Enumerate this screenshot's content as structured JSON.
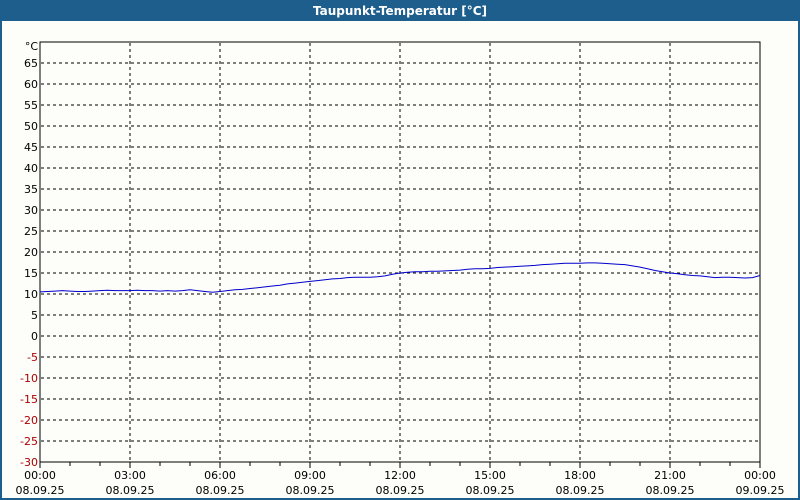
{
  "window": {
    "title": "Taupunkt-Temperatur [°C]",
    "title_bar_color": "#1d5e8c",
    "border_color": "#1d5e8c",
    "background_color": "#fdfdfa"
  },
  "chart_data": {
    "type": "line",
    "title": "Taupunkt-Temperatur [°C]",
    "grid": true,
    "grid_color": "#000000",
    "y_axis": {
      "unit_label": "°C",
      "min": -30,
      "max": 70,
      "grid_step": 5,
      "tick_values": [
        65,
        60,
        55,
        50,
        45,
        40,
        35,
        30,
        25,
        20,
        15,
        10,
        5,
        0,
        -5,
        -10,
        -15,
        -20,
        -25,
        -30
      ],
      "label_color": "#000000",
      "negative_label_color": "#aa0000"
    },
    "x_axis": {
      "min_hour": 0,
      "max_hour": 24,
      "major_step_hours": 3,
      "minor_step_hours": 1,
      "ticks": [
        {
          "time": "00:00",
          "date": "08.09.25"
        },
        {
          "time": "03:00",
          "date": "08.09.25"
        },
        {
          "time": "06:00",
          "date": "08.09.25"
        },
        {
          "time": "09:00",
          "date": "08.09.25"
        },
        {
          "time": "12:00",
          "date": "08.09.25"
        },
        {
          "time": "15:00",
          "date": "08.09.25"
        },
        {
          "time": "18:00",
          "date": "08.09.25"
        },
        {
          "time": "21:00",
          "date": "08.09.25"
        },
        {
          "time": "00:00",
          "date": "09.09.25"
        }
      ]
    },
    "series": [
      {
        "name": "Taupunkt-Temperatur",
        "color": "#0000cc",
        "points": [
          [
            0,
            10.5
          ],
          [
            0.25,
            10.6
          ],
          [
            0.5,
            10.7
          ],
          [
            0.75,
            10.8
          ],
          [
            1,
            10.7
          ],
          [
            1.25,
            10.6
          ],
          [
            1.5,
            10.6
          ],
          [
            1.75,
            10.7
          ],
          [
            2,
            10.8
          ],
          [
            2.25,
            10.9
          ],
          [
            2.5,
            10.8
          ],
          [
            2.75,
            10.8
          ],
          [
            3,
            10.8
          ],
          [
            3.25,
            10.9
          ],
          [
            3.5,
            10.8
          ],
          [
            3.75,
            10.8
          ],
          [
            4,
            10.7
          ],
          [
            4.25,
            10.8
          ],
          [
            4.5,
            10.7
          ],
          [
            4.75,
            10.8
          ],
          [
            5,
            11.0
          ],
          [
            5.25,
            10.8
          ],
          [
            5.5,
            10.6
          ],
          [
            5.75,
            10.4
          ],
          [
            6,
            10.6
          ],
          [
            6.25,
            10.8
          ],
          [
            6.5,
            11.0
          ],
          [
            6.75,
            11.1
          ],
          [
            7,
            11.3
          ],
          [
            7.25,
            11.5
          ],
          [
            7.5,
            11.7
          ],
          [
            7.75,
            11.9
          ],
          [
            8,
            12.1
          ],
          [
            8.25,
            12.4
          ],
          [
            8.5,
            12.6
          ],
          [
            8.75,
            12.8
          ],
          [
            9,
            13.0
          ],
          [
            9.25,
            13.2
          ],
          [
            9.5,
            13.4
          ],
          [
            9.75,
            13.6
          ],
          [
            10,
            13.7
          ],
          [
            10.25,
            13.9
          ],
          [
            10.5,
            14.0
          ],
          [
            10.75,
            14.0
          ],
          [
            11,
            14.0
          ],
          [
            11.25,
            14.1
          ],
          [
            11.5,
            14.3
          ],
          [
            11.75,
            14.7
          ],
          [
            12,
            15.0
          ],
          [
            12.25,
            15.2
          ],
          [
            12.5,
            15.3
          ],
          [
            12.75,
            15.3
          ],
          [
            13,
            15.4
          ],
          [
            13.25,
            15.4
          ],
          [
            13.5,
            15.5
          ],
          [
            13.75,
            15.6
          ],
          [
            14,
            15.7
          ],
          [
            14.25,
            15.9
          ],
          [
            14.5,
            16.0
          ],
          [
            14.75,
            16.0
          ],
          [
            15,
            16.1
          ],
          [
            15.25,
            16.3
          ],
          [
            15.5,
            16.4
          ],
          [
            15.75,
            16.5
          ],
          [
            16,
            16.6
          ],
          [
            16.25,
            16.7
          ],
          [
            16.5,
            16.8
          ],
          [
            16.75,
            17.0
          ],
          [
            17,
            17.1
          ],
          [
            17.25,
            17.2
          ],
          [
            17.5,
            17.3
          ],
          [
            17.75,
            17.3
          ],
          [
            18,
            17.3
          ],
          [
            18.25,
            17.4
          ],
          [
            18.5,
            17.4
          ],
          [
            18.75,
            17.3
          ],
          [
            19,
            17.2
          ],
          [
            19.25,
            17.1
          ],
          [
            19.5,
            17.0
          ],
          [
            19.75,
            16.7
          ],
          [
            20,
            16.4
          ],
          [
            20.25,
            16.0
          ],
          [
            20.5,
            15.6
          ],
          [
            20.75,
            15.3
          ],
          [
            21,
            15.0
          ],
          [
            21.25,
            14.8
          ],
          [
            21.5,
            14.6
          ],
          [
            21.75,
            14.4
          ],
          [
            22,
            14.3
          ],
          [
            22.25,
            14.1
          ],
          [
            22.5,
            13.9
          ],
          [
            22.75,
            14.0
          ],
          [
            23,
            14.0
          ],
          [
            23.25,
            13.9
          ],
          [
            23.5,
            13.8
          ],
          [
            23.75,
            13.9
          ],
          [
            24,
            14.4
          ]
        ]
      }
    ]
  }
}
